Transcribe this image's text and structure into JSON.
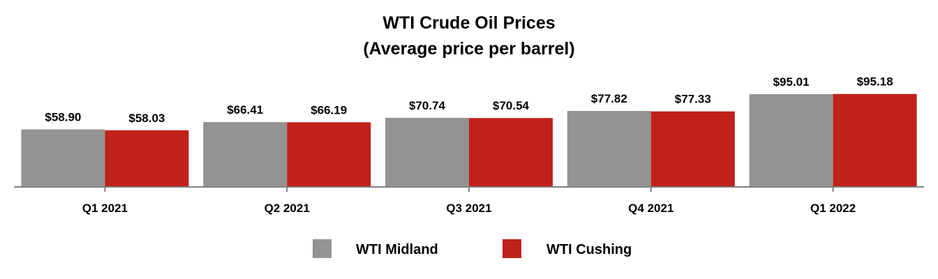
{
  "chart_data": {
    "type": "bar",
    "title": "WTI Crude Oil Prices",
    "subtitle": "(Average price per barrel)",
    "categories": [
      "Q1 2021",
      "Q2 2021",
      "Q3 2021",
      "Q4 2021",
      "Q1 2022"
    ],
    "series": [
      {
        "name": "WTI Midland",
        "color": "#939393",
        "values": [
          58.9,
          66.41,
          70.74,
          77.82,
          95.01
        ],
        "labels": [
          "$58.90",
          "$66.41",
          "$70.74",
          "$77.82",
          "$95.01"
        ]
      },
      {
        "name": "WTI Cushing",
        "color": "#c0211a",
        "values": [
          58.03,
          66.19,
          70.54,
          77.33,
          95.18
        ],
        "labels": [
          "$58.03",
          "$66.19",
          "$70.54",
          "$77.33",
          "$95.18"
        ]
      }
    ],
    "xlabel": "",
    "ylabel": "",
    "ylim": [
      0,
      120
    ],
    "grid": false,
    "legend": "bottom"
  }
}
